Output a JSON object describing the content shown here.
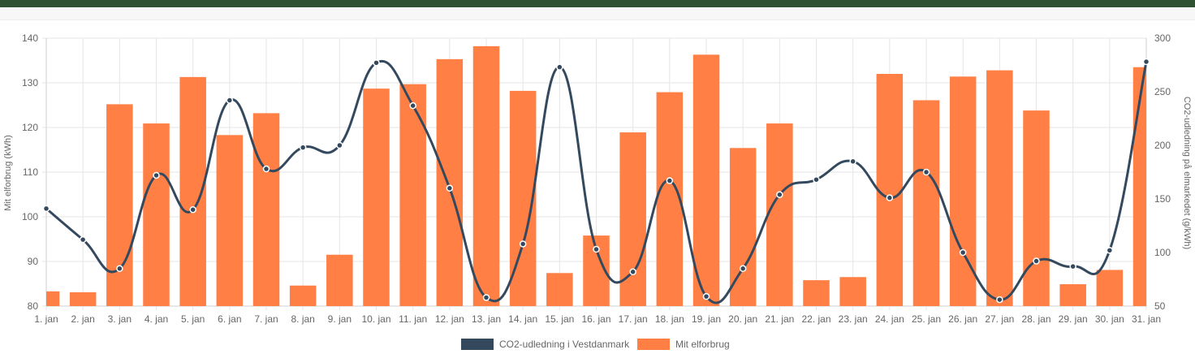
{
  "chart_data": {
    "type": "bar",
    "categories": [
      "1. jan",
      "2. jan",
      "3. jan",
      "4. jan",
      "5. jan",
      "6. jan",
      "7. jan",
      "8. jan",
      "9. jan",
      "10. jan",
      "11. jan",
      "12. jan",
      "13. jan",
      "14. jan",
      "15. jan",
      "16. jan",
      "17. jan",
      "18. jan",
      "19. jan",
      "20. jan",
      "21. jan",
      "22. jan",
      "23. jan",
      "24. jan",
      "25. jan",
      "26. jan",
      "27. jan",
      "28. jan",
      "29. jan",
      "30. jan",
      "31. jan"
    ],
    "series": [
      {
        "name": "CO2-udledning i Vestdanmark",
        "type": "line",
        "axis": "right",
        "color": "#34495e",
        "values": [
          141,
          112,
          85,
          172,
          140,
          242,
          178,
          198,
          200,
          277,
          237,
          160,
          58,
          108,
          273,
          103,
          82,
          167,
          59,
          85,
          154,
          168,
          185,
          151,
          175,
          100,
          56,
          92,
          87,
          102,
          278
        ]
      },
      {
        "name": "Mit elforbrug",
        "type": "bar",
        "axis": "left",
        "color": "#ff7f45",
        "values": [
          83.3,
          83.1,
          125.2,
          120.9,
          131.3,
          118.3,
          123.2,
          84.6,
          91.5,
          128.7,
          129.7,
          135.3,
          138.2,
          128.2,
          87.4,
          95.8,
          118.9,
          127.9,
          136.3,
          115.4,
          120.9,
          85.8,
          86.5,
          132.0,
          126.1,
          131.4,
          132.8,
          123.8,
          84.9,
          88.1,
          133.5
        ]
      }
    ],
    "ylabel_left": "Mit elforbrug (kWh)",
    "ylabel_right": "CO2-udledning på elmarkedet (g/kWh)",
    "ylim_left": [
      80,
      140
    ],
    "ylim_right": [
      50,
      300
    ],
    "yticks_left": [
      "80",
      "90",
      "100",
      "110",
      "120",
      "130",
      "140"
    ],
    "yticks_right": [
      "50",
      "100",
      "150",
      "200",
      "250",
      "300"
    ],
    "grid": true,
    "legend_position": "bottom"
  }
}
